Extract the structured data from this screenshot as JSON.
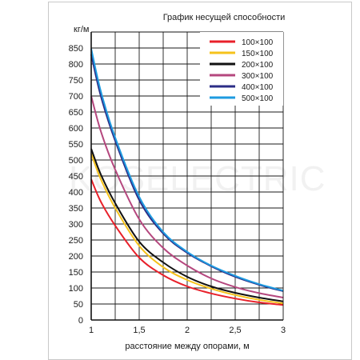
{
  "chart_data": {
    "type": "line",
    "title": "График несущей способности",
    "xlabel": "расстояние между опорами, м",
    "ylabel": "кг/м",
    "xlim": [
      1,
      3
    ],
    "ylim": [
      0,
      900
    ],
    "x_ticks": [
      1,
      1.5,
      2,
      2.5,
      3
    ],
    "x_tick_labels": [
      "1",
      "1,5",
      "2",
      "2,5",
      "3"
    ],
    "y_ticks": [
      0,
      50,
      100,
      150,
      200,
      250,
      300,
      350,
      400,
      450,
      500,
      550,
      600,
      650,
      700,
      750,
      800,
      850
    ],
    "grid": true,
    "legend_position": "top-right",
    "watermark": "KOSELECTRIC",
    "series": [
      {
        "name": "100×100",
        "color": "#e8202a",
        "x": [
          1,
          1.1,
          1.25,
          1.5,
          1.75,
          2,
          2.25,
          2.5,
          2.75,
          3
        ],
        "y": [
          440,
          370,
          295,
          195,
          140,
          105,
          83,
          67,
          55,
          47
        ]
      },
      {
        "name": "150×100",
        "color": "#f5c21b",
        "x": [
          1,
          1.1,
          1.25,
          1.5,
          1.75,
          2,
          2.25,
          2.5,
          2.75,
          3
        ],
        "y": [
          520,
          440,
          350,
          232,
          165,
          125,
          98,
          78,
          63,
          52
        ]
      },
      {
        "name": "200×100",
        "color": "#111111",
        "x": [
          1,
          1.1,
          1.25,
          1.5,
          1.75,
          2,
          2.25,
          2.5,
          2.75,
          3
        ],
        "y": [
          535,
          455,
          365,
          245,
          180,
          135,
          105,
          85,
          70,
          58
        ]
      },
      {
        "name": "300×100",
        "color": "#b5477e",
        "x": [
          1,
          1.1,
          1.25,
          1.5,
          1.75,
          2,
          2.25,
          2.5,
          2.75,
          3
        ],
        "y": [
          700,
          590,
          470,
          315,
          225,
          170,
          130,
          103,
          84,
          70
        ]
      },
      {
        "name": "400×100",
        "color": "#2b2d86",
        "x": [
          1,
          1.1,
          1.25,
          1.5,
          1.75,
          2,
          2.25,
          2.5,
          2.75,
          3
        ],
        "y": [
          830,
          700,
          560,
          375,
          270,
          210,
          168,
          135,
          110,
          90
        ]
      },
      {
        "name": "500×100",
        "color": "#1e9be0",
        "x": [
          1,
          1.1,
          1.25,
          1.5,
          1.75,
          2,
          2.25,
          2.5,
          2.75,
          3
        ],
        "y": [
          848,
          715,
          570,
          385,
          275,
          213,
          170,
          138,
          112,
          92
        ]
      }
    ]
  }
}
